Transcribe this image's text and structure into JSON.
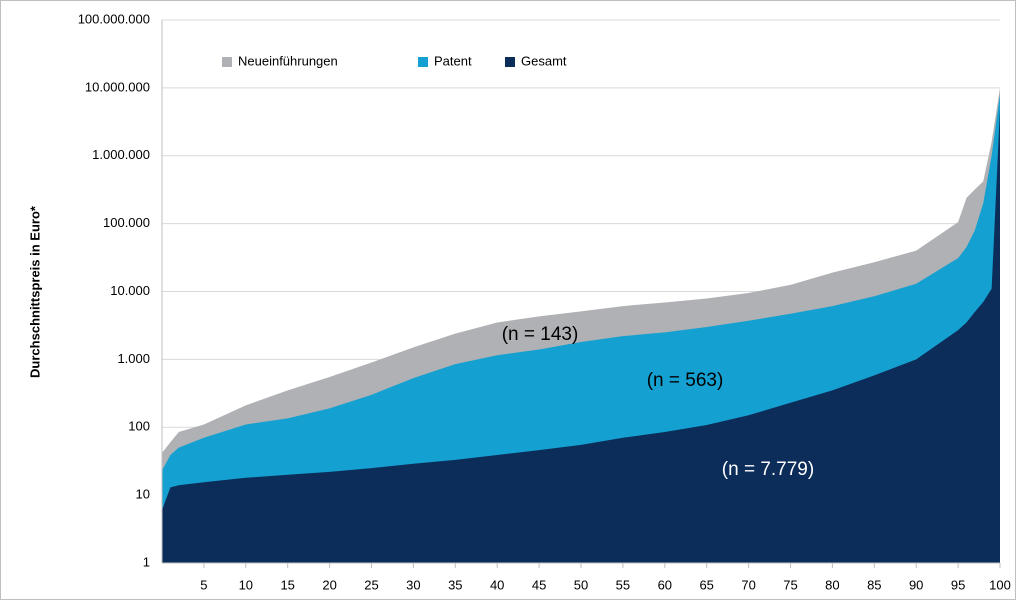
{
  "chart_data": {
    "type": "area",
    "y_label": "Durchschnittspreis in Euro*",
    "log_scale": true,
    "grid": true,
    "legend": "top",
    "x": [
      0,
      1,
      2,
      5,
      10,
      15,
      20,
      25,
      30,
      35,
      40,
      45,
      50,
      55,
      60,
      65,
      70,
      75,
      80,
      85,
      90,
      95,
      96,
      97,
      98,
      99,
      100
    ],
    "series": [
      {
        "name": "Neueinführungen",
        "color": "#afb1b4",
        "values": [
          42,
          60,
          85,
          110,
          210,
          350,
          550,
          900,
          1500,
          2400,
          3500,
          4300,
          5100,
          6100,
          6900,
          7900,
          9500,
          12500,
          19000,
          27000,
          40000,
          105000,
          240000,
          320000,
          420000,
          1600000,
          10000000
        ]
      },
      {
        "name": "Patent",
        "color": "#14a0d0",
        "values": [
          23,
          39,
          50,
          70,
          110,
          135,
          190,
          300,
          530,
          850,
          1150,
          1400,
          1800,
          2200,
          2500,
          3000,
          3700,
          4700,
          6100,
          8500,
          13000,
          31000,
          45000,
          80000,
          200000,
          1000000,
          8000000
        ]
      },
      {
        "name": "Gesamt",
        "color": "#0c2d5a",
        "values": [
          6,
          13,
          14,
          15.5,
          18,
          20,
          22,
          25,
          29,
          33,
          39,
          46,
          55,
          70,
          85,
          108,
          150,
          230,
          350,
          580,
          1000,
          2700,
          3500,
          5000,
          7000,
          11000,
          5000000
        ]
      }
    ],
    "xlim": [
      0,
      100
    ],
    "xticks": [
      5,
      10,
      15,
      20,
      25,
      30,
      35,
      40,
      45,
      50,
      55,
      60,
      65,
      70,
      75,
      80,
      85,
      90,
      95,
      100
    ],
    "ylim": [
      1,
      100000000
    ],
    "yticks": [
      1,
      10,
      100,
      {
        "value": 1000,
        "label": "1.000"
      },
      {
        "value": 10000,
        "label": "10.000"
      },
      {
        "value": 100000,
        "label": "100.000"
      },
      {
        "value": 1000000,
        "label": "1.000.000"
      },
      {
        "value": 10000000,
        "label": "10.000.000"
      },
      {
        "value": 100000000,
        "label": "100.000.000"
      }
    ],
    "annotations": [
      "(n = 143)",
      "(n = 563)",
      "(n = 7.779)"
    ]
  }
}
